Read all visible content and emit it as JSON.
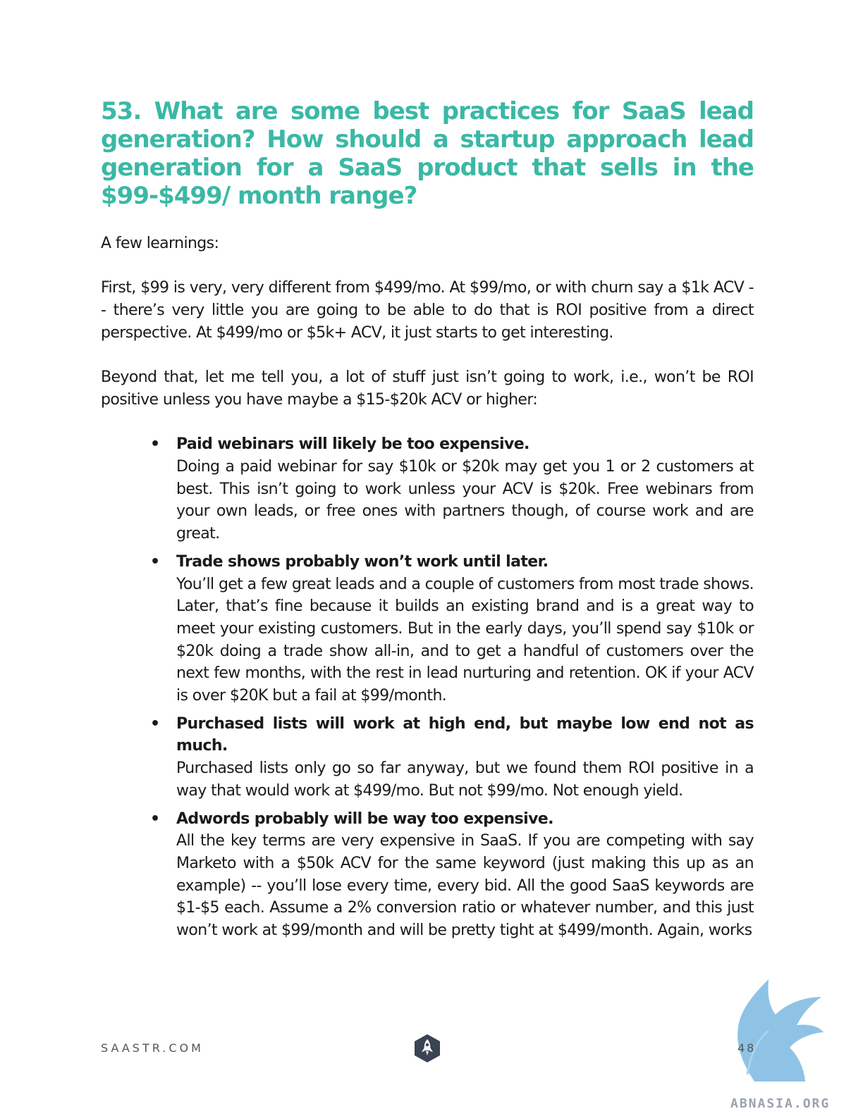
{
  "heading": "53. What are some best practices for SaaS lead generation? How should a startup approach lead generation for a SaaS product that sells in the $99-$499/ month range?",
  "paragraphs": [
    "A few learnings:",
    "First, $99 is very, very different from $499/mo. At $99/mo, or with churn say a $1k ACV -- there’s very little you are going to be able to do that is ROI positive from a direct perspective. At $499/mo or $5k+ ACV, it just starts to get interesting.",
    "Beyond that, let me tell you, a lot of stuff just isn’t going to work, i.e., won’t be ROI positive unless you have maybe a $15-$20k ACV or higher:"
  ],
  "bullets": [
    {
      "title": "Paid webinars will likely be too expensive.",
      "text": "Doing a paid webinar for say $10k or $20k may get you 1 or 2 customers at best. This isn’t going to work unless your ACV is $20k. Free webinars from your own leads, or free ones with partners though, of course work and are great."
    },
    {
      "title": "Trade shows probably won’t work until later.",
      "text": "You’ll get a few great leads and a couple of customers from most trade shows. Later, that’s fine because it builds an existing brand and is a great way to meet your existing customers. But in the early days, you’ll spend say $10k or $20k doing a trade show all-in, and to get a handful of customers over the next few months, with the rest in lead nurturing and retention. OK if your ACV is over $20K but a fail at $99/month."
    },
    {
      "title": "Purchased lists will work at high end, but maybe low end not as much.",
      "text": "Purchased lists only go so far anyway, but we found them ROI positive in a way that would work at $499/mo. But not $99/mo. Not enough yield."
    },
    {
      "title": "Adwords probably will be way too expensive.",
      "text": "All the key terms are very expensive in SaaS. If you are competing with say Marketo with a $50k ACV for the same keyword (just making this up as an example) -- you’ll lose every time, every bid. All the good SaaS keywords are $1-$5 each. Assume a 2% conversion ratio or whatever number, and this just won’t work at $99/month and will be pretty tight at $499/month. Again, works"
    }
  ],
  "bullet_symbol": "•",
  "footer": {
    "site": "SAASTR.COM",
    "page_number": "48",
    "logo_icon": "saastr-rocket-hexagon-icon"
  },
  "watermark": {
    "text": "ABNASIA.ORG",
    "icon": "griffin-icon"
  },
  "colors": {
    "heading": "#3bb8a5",
    "body_text": "#1a1a1a",
    "footer_text": "#555555",
    "logo_dark": "#3a4452",
    "watermark_blue": "#7ab8e0"
  }
}
